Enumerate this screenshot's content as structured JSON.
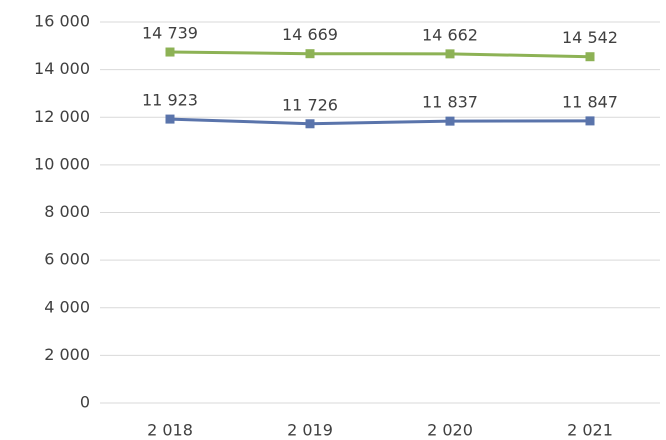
{
  "chart_data": {
    "type": "line",
    "categories": [
      "2 018",
      "2 019",
      "2 020",
      "2 021"
    ],
    "series": [
      {
        "color": "#8db255",
        "values": [
          14739,
          14669,
          14662,
          14542
        ],
        "value_labels": [
          "14 739",
          "14 669",
          "14 662",
          "14 542"
        ]
      },
      {
        "color": "#5a74ab",
        "values": [
          11923,
          11726,
          11837,
          11847
        ],
        "value_labels": [
          "11 923",
          "11 726",
          "11 837",
          "11 847"
        ]
      }
    ],
    "ylim": [
      0,
      16000
    ],
    "yticks": [
      {
        "value": 0,
        "label": "0"
      },
      {
        "value": 2000,
        "label": "2 000"
      },
      {
        "value": 4000,
        "label": "4 000"
      },
      {
        "value": 6000,
        "label": "6 000"
      },
      {
        "value": 8000,
        "label": "8 000"
      },
      {
        "value": 10000,
        "label": "10 000"
      },
      {
        "value": 12000,
        "label": "12 000"
      },
      {
        "value": 14000,
        "label": "14 000"
      },
      {
        "value": 16000,
        "label": "16 000"
      }
    ],
    "grid": true
  }
}
